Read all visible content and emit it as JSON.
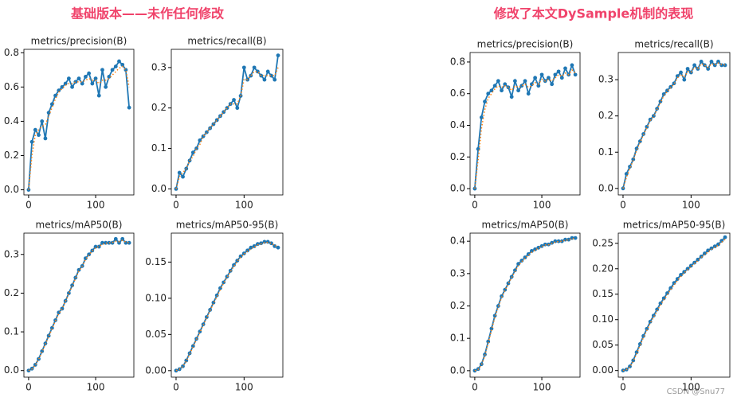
{
  "headings": [
    "基础版本——未作任何修改",
    "修改了本文DySample机制的表现"
  ],
  "watermark": "CSDN @Snu77",
  "chart_data": [
    {
      "type": "line",
      "title": "metrics/precision(B)",
      "xlim": [
        -7,
        157
      ],
      "xticks": [
        0,
        100
      ],
      "ylim": [
        -0.03,
        0.82
      ],
      "yticks": [
        {
          "value": 0,
          "label": "0.0"
        },
        0.2,
        0.4,
        0.6,
        0.8
      ],
      "x": [
        0,
        5,
        10,
        15,
        20,
        25,
        30,
        35,
        40,
        45,
        50,
        55,
        60,
        65,
        70,
        75,
        80,
        85,
        90,
        95,
        100,
        105,
        110,
        115,
        120,
        125,
        130,
        135,
        140,
        145,
        150
      ],
      "series": [
        {
          "color": "#1f77b4",
          "values": [
            0,
            0.28,
            0.35,
            0.32,
            0.4,
            0.3,
            0.45,
            0.5,
            0.55,
            0.58,
            0.6,
            0.62,
            0.65,
            0.6,
            0.63,
            0.65,
            0.62,
            0.66,
            0.68,
            0.62,
            0.65,
            0.55,
            0.7,
            0.6,
            0.66,
            0.7,
            0.72,
            0.75,
            0.73,
            0.7,
            0.48
          ]
        },
        {
          "color": "#ff7f0e",
          "style": "dotted",
          "values": [
            0,
            0.2,
            0.32,
            0.35,
            0.37,
            0.38,
            0.43,
            0.48,
            0.53,
            0.57,
            0.59,
            0.61,
            0.62,
            0.62,
            0.63,
            0.63,
            0.63,
            0.64,
            0.65,
            0.64,
            0.64,
            0.62,
            0.64,
            0.64,
            0.65,
            0.67,
            0.69,
            0.71,
            0.72,
            0.7,
            0.6
          ]
        }
      ]
    },
    {
      "type": "line",
      "title": "metrics/recall(B)",
      "xlim": [
        -7,
        157
      ],
      "xticks": [
        0,
        100
      ],
      "ylim": [
        -0.015,
        0.345
      ],
      "yticks": [
        {
          "value": 0,
          "label": "0.0"
        },
        0.1,
        0.2,
        0.3
      ],
      "x": [
        0,
        5,
        10,
        15,
        20,
        25,
        30,
        35,
        40,
        45,
        50,
        55,
        60,
        65,
        70,
        75,
        80,
        85,
        90,
        95,
        100,
        105,
        110,
        115,
        120,
        125,
        130,
        135,
        140,
        145,
        150
      ],
      "series": [
        {
          "color": "#1f77b4",
          "values": [
            0,
            0.04,
            0.03,
            0.05,
            0.07,
            0.09,
            0.1,
            0.12,
            0.13,
            0.14,
            0.15,
            0.16,
            0.17,
            0.18,
            0.19,
            0.2,
            0.21,
            0.22,
            0.2,
            0.23,
            0.3,
            0.27,
            0.28,
            0.3,
            0.29,
            0.28,
            0.27,
            0.29,
            0.28,
            0.27,
            0.33
          ]
        },
        {
          "color": "#ff7f0e",
          "style": "dotted",
          "values": [
            0,
            0.03,
            0.04,
            0.05,
            0.07,
            0.08,
            0.1,
            0.11,
            0.13,
            0.14,
            0.15,
            0.16,
            0.17,
            0.18,
            0.19,
            0.2,
            0.21,
            0.21,
            0.21,
            0.23,
            0.27,
            0.27,
            0.28,
            0.29,
            0.29,
            0.28,
            0.28,
            0.28,
            0.28,
            0.28,
            0.3
          ]
        }
      ]
    },
    {
      "type": "line",
      "title": "metrics/mAP50(B)",
      "xlim": [
        -7,
        157
      ],
      "xticks": [
        0,
        100
      ],
      "ylim": [
        -0.017,
        0.355
      ],
      "yticks": [
        {
          "value": 0,
          "label": "0.0"
        },
        0.1,
        0.2,
        0.3
      ],
      "x": [
        0,
        5,
        10,
        15,
        20,
        25,
        30,
        35,
        40,
        45,
        50,
        55,
        60,
        65,
        70,
        75,
        80,
        85,
        90,
        95,
        100,
        105,
        110,
        115,
        120,
        125,
        130,
        135,
        140,
        145,
        150
      ],
      "series": [
        {
          "color": "#1f77b4",
          "values": [
            0,
            0.005,
            0.015,
            0.03,
            0.05,
            0.07,
            0.09,
            0.11,
            0.13,
            0.15,
            0.16,
            0.18,
            0.2,
            0.22,
            0.24,
            0.26,
            0.27,
            0.29,
            0.3,
            0.31,
            0.32,
            0.32,
            0.33,
            0.33,
            0.33,
            0.33,
            0.34,
            0.33,
            0.34,
            0.33,
            0.33
          ]
        },
        {
          "color": "#ff7f0e",
          "style": "dotted",
          "values": [
            0,
            0.004,
            0.014,
            0.029,
            0.048,
            0.068,
            0.088,
            0.108,
            0.128,
            0.147,
            0.16,
            0.179,
            0.199,
            0.218,
            0.238,
            0.257,
            0.27,
            0.287,
            0.298,
            0.309,
            0.317,
            0.321,
            0.326,
            0.329,
            0.33,
            0.331,
            0.334,
            0.333,
            0.336,
            0.332,
            0.33
          ]
        }
      ]
    },
    {
      "type": "line",
      "title": "metrics/mAP50-95(B)",
      "xlim": [
        -7,
        157
      ],
      "xticks": [
        0,
        100
      ],
      "ylim": [
        -0.009,
        0.19
      ],
      "yticks": [
        {
          "value": 0,
          "label": "0.00"
        },
        0.05,
        {
          "value": 0.1,
          "label": "0.10"
        },
        0.15
      ],
      "x": [
        0,
        5,
        10,
        15,
        20,
        25,
        30,
        35,
        40,
        45,
        50,
        55,
        60,
        65,
        70,
        75,
        80,
        85,
        90,
        95,
        100,
        105,
        110,
        115,
        120,
        125,
        130,
        135,
        140,
        145,
        150
      ],
      "series": [
        {
          "color": "#1f77b4",
          "values": [
            0,
            0.002,
            0.006,
            0.014,
            0.024,
            0.034,
            0.044,
            0.054,
            0.064,
            0.074,
            0.084,
            0.094,
            0.104,
            0.114,
            0.122,
            0.13,
            0.138,
            0.146,
            0.152,
            0.158,
            0.162,
            0.166,
            0.17,
            0.172,
            0.175,
            0.176,
            0.178,
            0.178,
            0.176,
            0.172,
            0.17
          ]
        },
        {
          "color": "#ff7f0e",
          "style": "dotted",
          "values": [
            0,
            0.002,
            0.006,
            0.013,
            0.023,
            0.033,
            0.043,
            0.053,
            0.063,
            0.073,
            0.083,
            0.093,
            0.102,
            0.112,
            0.121,
            0.129,
            0.137,
            0.144,
            0.151,
            0.157,
            0.161,
            0.165,
            0.168,
            0.171,
            0.174,
            0.175,
            0.177,
            0.177,
            0.176,
            0.173,
            0.171
          ]
        }
      ]
    },
    {
      "type": "line",
      "title": "metrics/precision(B)",
      "xlim": [
        -7,
        157
      ],
      "xticks": [
        0,
        100
      ],
      "ylim": [
        -0.04,
        0.86
      ],
      "yticks": [
        {
          "value": 0,
          "label": "0.0"
        },
        0.2,
        0.4,
        0.6,
        0.8
      ],
      "x": [
        0,
        5,
        10,
        15,
        20,
        25,
        30,
        35,
        40,
        45,
        50,
        55,
        60,
        65,
        70,
        75,
        80,
        85,
        90,
        95,
        100,
        105,
        110,
        115,
        120,
        125,
        130,
        135,
        140,
        145,
        150
      ],
      "series": [
        {
          "color": "#1f77b4",
          "values": [
            0,
            0.25,
            0.45,
            0.55,
            0.6,
            0.62,
            0.65,
            0.68,
            0.62,
            0.66,
            0.64,
            0.58,
            0.68,
            0.62,
            0.65,
            0.68,
            0.6,
            0.66,
            0.7,
            0.65,
            0.72,
            0.68,
            0.7,
            0.66,
            0.72,
            0.74,
            0.7,
            0.76,
            0.72,
            0.78,
            0.72
          ]
        },
        {
          "color": "#ff7f0e",
          "style": "dotted",
          "values": [
            0,
            0.18,
            0.38,
            0.5,
            0.57,
            0.6,
            0.63,
            0.65,
            0.64,
            0.65,
            0.64,
            0.62,
            0.65,
            0.64,
            0.65,
            0.66,
            0.64,
            0.65,
            0.67,
            0.66,
            0.69,
            0.68,
            0.69,
            0.68,
            0.7,
            0.72,
            0.71,
            0.73,
            0.72,
            0.75,
            0.73
          ]
        }
      ]
    },
    {
      "type": "line",
      "title": "metrics/recall(B)",
      "xlim": [
        -7,
        157
      ],
      "xticks": [
        0,
        100
      ],
      "ylim": [
        -0.018,
        0.375
      ],
      "yticks": [
        {
          "value": 0,
          "label": "0.0"
        },
        0.1,
        0.2,
        0.3
      ],
      "x": [
        0,
        5,
        10,
        15,
        20,
        25,
        30,
        35,
        40,
        45,
        50,
        55,
        60,
        65,
        70,
        75,
        80,
        85,
        90,
        95,
        100,
        105,
        110,
        115,
        120,
        125,
        130,
        135,
        140,
        145,
        150
      ],
      "series": [
        {
          "color": "#1f77b4",
          "values": [
            0,
            0.04,
            0.06,
            0.08,
            0.11,
            0.13,
            0.15,
            0.17,
            0.19,
            0.2,
            0.22,
            0.24,
            0.26,
            0.27,
            0.28,
            0.29,
            0.31,
            0.32,
            0.3,
            0.33,
            0.32,
            0.34,
            0.33,
            0.35,
            0.34,
            0.33,
            0.35,
            0.34,
            0.35,
            0.34,
            0.34
          ]
        },
        {
          "color": "#ff7f0e",
          "style": "dotted",
          "values": [
            0,
            0.03,
            0.055,
            0.078,
            0.105,
            0.127,
            0.148,
            0.168,
            0.187,
            0.199,
            0.218,
            0.237,
            0.256,
            0.268,
            0.278,
            0.288,
            0.305,
            0.315,
            0.307,
            0.322,
            0.321,
            0.334,
            0.331,
            0.344,
            0.34,
            0.334,
            0.344,
            0.341,
            0.346,
            0.342,
            0.341
          ]
        }
      ]
    },
    {
      "type": "line",
      "title": "metrics/mAP50(B)",
      "xlim": [
        -7,
        157
      ],
      "xticks": [
        0,
        100
      ],
      "ylim": [
        -0.02,
        0.425
      ],
      "yticks": [
        {
          "value": 0,
          "label": "0.0"
        },
        0.1,
        0.2,
        0.3,
        0.4
      ],
      "x": [
        0,
        5,
        10,
        15,
        20,
        25,
        30,
        35,
        40,
        45,
        50,
        55,
        60,
        65,
        70,
        75,
        80,
        85,
        90,
        95,
        100,
        105,
        110,
        115,
        120,
        125,
        130,
        135,
        140,
        145,
        150
      ],
      "series": [
        {
          "color": "#1f77b4",
          "values": [
            0,
            0.005,
            0.02,
            0.05,
            0.09,
            0.13,
            0.17,
            0.2,
            0.23,
            0.25,
            0.27,
            0.29,
            0.31,
            0.33,
            0.34,
            0.35,
            0.36,
            0.37,
            0.375,
            0.38,
            0.385,
            0.39,
            0.39,
            0.395,
            0.4,
            0.4,
            0.4,
            0.405,
            0.405,
            0.41,
            0.41
          ]
        },
        {
          "color": "#ff7f0e",
          "style": "dotted",
          "values": [
            0,
            0.004,
            0.018,
            0.046,
            0.085,
            0.125,
            0.165,
            0.196,
            0.226,
            0.248,
            0.268,
            0.288,
            0.306,
            0.325,
            0.337,
            0.347,
            0.357,
            0.366,
            0.373,
            0.378,
            0.383,
            0.388,
            0.389,
            0.393,
            0.398,
            0.399,
            0.4,
            0.403,
            0.404,
            0.408,
            0.409
          ]
        }
      ]
    },
    {
      "type": "line",
      "title": "metrics/mAP50-95(B)",
      "xlim": [
        -7,
        157
      ],
      "xticks": [
        0,
        100
      ],
      "ylim": [
        -0.013,
        0.27
      ],
      "yticks": [
        {
          "value": 0,
          "label": "0.00"
        },
        0.05,
        {
          "value": 0.1,
          "label": "0.10"
        },
        0.15,
        {
          "value": 0.2,
          "label": "0.20"
        },
        0.25
      ],
      "x": [
        0,
        5,
        10,
        15,
        20,
        25,
        30,
        35,
        40,
        45,
        50,
        55,
        60,
        65,
        70,
        75,
        80,
        85,
        90,
        95,
        100,
        105,
        110,
        115,
        120,
        125,
        130,
        135,
        140,
        145,
        150
      ],
      "series": [
        {
          "color": "#1f77b4",
          "values": [
            0,
            0.002,
            0.008,
            0.02,
            0.036,
            0.052,
            0.068,
            0.082,
            0.096,
            0.108,
            0.12,
            0.132,
            0.142,
            0.152,
            0.162,
            0.172,
            0.18,
            0.188,
            0.194,
            0.2,
            0.206,
            0.212,
            0.218,
            0.224,
            0.23,
            0.236,
            0.24,
            0.244,
            0.248,
            0.255,
            0.262
          ]
        },
        {
          "color": "#ff7f0e",
          "style": "dotted",
          "values": [
            0,
            0.002,
            0.007,
            0.018,
            0.033,
            0.049,
            0.065,
            0.079,
            0.093,
            0.105,
            0.117,
            0.129,
            0.139,
            0.149,
            0.159,
            0.168,
            0.177,
            0.185,
            0.192,
            0.198,
            0.204,
            0.21,
            0.216,
            0.222,
            0.228,
            0.233,
            0.238,
            0.242,
            0.246,
            0.252,
            0.258
          ]
        }
      ]
    }
  ]
}
